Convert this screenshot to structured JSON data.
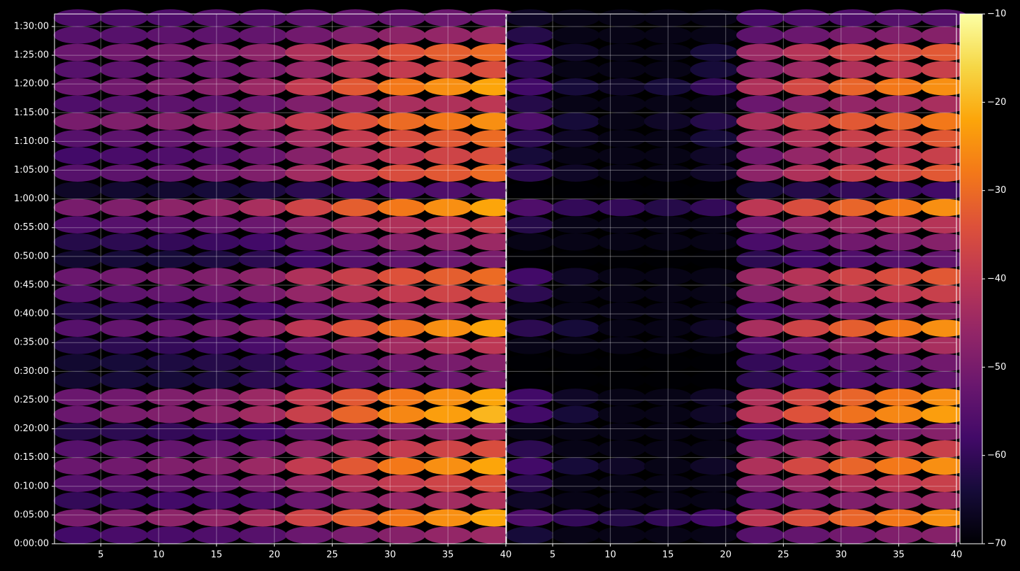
{
  "chart_data": [
    {
      "type": "heatmap",
      "grid": true,
      "x": [
        3,
        7,
        11,
        15,
        19,
        23,
        27,
        31,
        35,
        39
      ],
      "y": [
        90,
        270,
        450,
        630,
        810,
        990,
        1170,
        1350,
        1530,
        1710,
        1890,
        2070,
        2250,
        2430,
        2610,
        2790,
        2970,
        3150,
        3330,
        3510,
        3690,
        3870,
        4050,
        4230,
        4410,
        4590,
        4770,
        4950,
        5130,
        5310,
        5490
      ],
      "xlim": [
        1,
        40
      ],
      "ylim": [
        0,
        5531
      ],
      "xticks": [
        5,
        10,
        15,
        20,
        25,
        30,
        35,
        40
      ],
      "yticks": [
        {
          "value": 0,
          "label": "0:00:00"
        },
        {
          "value": 300,
          "label": "0:05:00"
        },
        {
          "value": 600,
          "label": "0:10:00"
        },
        {
          "value": 900,
          "label": "0:15:00"
        },
        {
          "value": 1200,
          "label": "0:20:00"
        },
        {
          "value": 1500,
          "label": "0:25:00"
        },
        {
          "value": 1800,
          "label": "0:30:00"
        },
        {
          "value": 2100,
          "label": "0:35:00"
        },
        {
          "value": 2400,
          "label": "0:40:00"
        },
        {
          "value": 2700,
          "label": "0:45:00"
        },
        {
          "value": 3000,
          "label": "0:50:00"
        },
        {
          "value": 3300,
          "label": "0:55:00"
        },
        {
          "value": 3600,
          "label": "1:00:00"
        },
        {
          "value": 3900,
          "label": "1:05:00"
        },
        {
          "value": 4200,
          "label": "1:10:00"
        },
        {
          "value": 4500,
          "label": "1:15:00"
        },
        {
          "value": 4800,
          "label": "1:20:00"
        },
        {
          "value": 5100,
          "label": "1:25:00"
        },
        {
          "value": 5400,
          "label": "1:30:00"
        }
      ],
      "z": [
        [
          -58,
          -57,
          -57,
          -56,
          -55,
          -52,
          -50,
          -48,
          -46,
          -45
        ],
        [
          -50,
          -49,
          -47,
          -46,
          -43,
          -37,
          -32,
          -28,
          -25,
          -22
        ],
        [
          -60,
          -59,
          -58,
          -57,
          -56,
          -52,
          -48,
          -46,
          -44,
          -42
        ],
        [
          -55,
          -54,
          -53,
          -52,
          -50,
          -46,
          -42,
          -39,
          -37,
          -35
        ],
        [
          -52,
          -51,
          -49,
          -48,
          -45,
          -39,
          -33,
          -28,
          -25,
          -22
        ],
        [
          -55,
          -54,
          -53,
          -52,
          -50,
          -46,
          -42,
          -39,
          -37,
          -35
        ],
        [
          -62,
          -61,
          -60,
          -59,
          -58,
          -54,
          -51,
          -48,
          -47,
          -45
        ],
        [
          -52,
          -50,
          -49,
          -47,
          -44,
          -38,
          -31,
          -26,
          -23,
          -20
        ],
        [
          -52,
          -51,
          -49,
          -48,
          -45,
          -39,
          -33,
          -28,
          -25,
          -22
        ],
        [
          -65,
          -64,
          -64,
          -63,
          -61,
          -58,
          -55,
          -53,
          -52,
          -50
        ],
        [
          -65,
          -64,
          -63,
          -62,
          -61,
          -57,
          -54,
          -51,
          -50,
          -48
        ],
        [
          -62,
          -61,
          -60,
          -59,
          -57,
          -52,
          -48,
          -44,
          -42,
          -40
        ],
        [
          -55,
          -53,
          -52,
          -50,
          -47,
          -40,
          -34,
          -29,
          -25,
          -22
        ],
        [
          -62,
          -61,
          -60,
          -59,
          -58,
          -54,
          -51,
          -48,
          -47,
          -45
        ],
        [
          -55,
          -54,
          -53,
          -52,
          -50,
          -46,
          -42,
          -39,
          -37,
          -35
        ],
        [
          -52,
          -51,
          -50,
          -49,
          -47,
          -42,
          -38,
          -34,
          -32,
          -30
        ],
        [
          -65,
          -64,
          -64,
          -63,
          -61,
          -58,
          -55,
          -53,
          -52,
          -50
        ],
        [
          -62,
          -61,
          -60,
          -59,
          -58,
          -54,
          -51,
          -48,
          -47,
          -45
        ],
        [
          -56,
          -55,
          -54,
          -53,
          -52,
          -48,
          -44,
          -42,
          -40,
          -38
        ],
        [
          -50,
          -49,
          -47,
          -46,
          -43,
          -37,
          -32,
          -28,
          -25,
          -22
        ],
        [
          -66,
          -65,
          -65,
          -64,
          -63,
          -61,
          -59,
          -57,
          -56,
          -55
        ],
        [
          -55,
          -54,
          -53,
          -51,
          -49,
          -44,
          -39,
          -35,
          -33,
          -30
        ],
        [
          -58,
          -57,
          -56,
          -55,
          -52,
          -48,
          -43,
          -40,
          -37,
          -35
        ],
        [
          -55,
          -54,
          -53,
          -51,
          -49,
          -44,
          -39,
          -35,
          -33,
          -30
        ],
        [
          -50,
          -49,
          -48,
          -46,
          -44,
          -39,
          -34,
          -30,
          -28,
          -25
        ],
        [
          -56,
          -55,
          -54,
          -54,
          -52,
          -49,
          -46,
          -43,
          -42,
          -40
        ],
        [
          -52,
          -51,
          -49,
          -48,
          -45,
          -39,
          -33,
          -28,
          -25,
          -22
        ],
        [
          -55,
          -54,
          -53,
          -52,
          -50,
          -46,
          -42,
          -39,
          -37,
          -35
        ],
        [
          -52,
          -51,
          -50,
          -49,
          -47,
          -42,
          -38,
          -34,
          -32,
          -30
        ],
        [
          -55,
          -55,
          -54,
          -54,
          -53,
          -51,
          -49,
          -47,
          -46,
          -45
        ],
        [
          -56,
          -56,
          -56,
          -55,
          -55,
          -54,
          -53,
          -53,
          -52,
          -52
        ]
      ]
    },
    {
      "type": "heatmap",
      "grid": true,
      "x": [
        3,
        7,
        11,
        15,
        19,
        23,
        27,
        31,
        35,
        39
      ],
      "y": [
        90,
        270,
        450,
        630,
        810,
        990,
        1170,
        1350,
        1530,
        1710,
        1890,
        2070,
        2250,
        2430,
        2610,
        2790,
        2970,
        3150,
        3330,
        3510,
        3690,
        3870,
        4050,
        4230,
        4410,
        4590,
        4770,
        4950,
        5130,
        5310,
        5490
      ],
      "xlim": [
        1,
        40
      ],
      "ylim": [
        0,
        5531
      ],
      "xticks": [
        5,
        10,
        15,
        20,
        25,
        30,
        35,
        40
      ],
      "z": [
        [
          -64,
          -68,
          -68,
          -68,
          -68,
          -55,
          -53,
          -51,
          -49,
          -48
        ],
        [
          -56,
          -60,
          -62,
          -60,
          -58,
          -40,
          -35,
          -31,
          -28,
          -25
        ],
        [
          -66,
          -68,
          -68,
          -68,
          -68,
          -55,
          -51,
          -49,
          -47,
          -45
        ],
        [
          -61,
          -68,
          -68,
          -68,
          -68,
          -49,
          -45,
          -42,
          -40,
          -38
        ],
        [
          -58,
          -64,
          -66,
          -68,
          -66,
          -42,
          -36,
          -31,
          -28,
          -25
        ],
        [
          -61,
          -68,
          -68,
          -68,
          -68,
          -49,
          -45,
          -42,
          -40,
          -38
        ],
        [
          -68,
          -68,
          -68,
          -68,
          -68,
          -57,
          -54,
          -51,
          -50,
          -48
        ],
        [
          -58,
          -64,
          -68,
          -68,
          -66,
          -41,
          -34,
          -29,
          -26,
          -23
        ],
        [
          -58,
          -66,
          -68,
          -68,
          -66,
          -42,
          -36,
          -31,
          -28,
          -25
        ],
        [
          -70,
          -70,
          -70,
          -70,
          -70,
          -61,
          -58,
          -56,
          -55,
          -53
        ],
        [
          -70,
          -70,
          -70,
          -70,
          -70,
          -60,
          -57,
          -54,
          -53,
          -51
        ],
        [
          -68,
          -68,
          -68,
          -68,
          -68,
          -55,
          -51,
          -47,
          -45,
          -43
        ],
        [
          -61,
          -64,
          -68,
          -68,
          -66,
          -43,
          -37,
          -32,
          -28,
          -25
        ],
        [
          -68,
          -68,
          -68,
          -68,
          -68,
          -57,
          -54,
          -51,
          -50,
          -48
        ],
        [
          -61,
          -68,
          -68,
          -68,
          -68,
          -49,
          -45,
          -42,
          -40,
          -38
        ],
        [
          -58,
          -66,
          -68,
          -68,
          -68,
          -45,
          -41,
          -37,
          -35,
          -33
        ],
        [
          -70,
          -70,
          -70,
          -70,
          -70,
          -61,
          -58,
          -56,
          -55,
          -53
        ],
        [
          -68,
          -68,
          -68,
          -68,
          -68,
          -57,
          -54,
          -51,
          -50,
          -48
        ],
        [
          -62,
          -68,
          -68,
          -68,
          -68,
          -51,
          -47,
          -45,
          -43,
          -41
        ],
        [
          -56,
          -60,
          -60,
          -62,
          -60,
          -40,
          -35,
          -31,
          -28,
          -25
        ],
        [
          -70,
          -70,
          -70,
          -70,
          -70,
          -64,
          -62,
          -60,
          -59,
          -58
        ],
        [
          -61,
          -66,
          -68,
          -68,
          -66,
          -47,
          -42,
          -38,
          -36,
          -33
        ],
        [
          -64,
          -68,
          -68,
          -68,
          -66,
          -51,
          -46,
          -43,
          -40,
          -38
        ],
        [
          -61,
          -66,
          -68,
          -68,
          -64,
          -47,
          -42,
          -38,
          -36,
          -33
        ],
        [
          -56,
          -64,
          -68,
          -66,
          -62,
          -42,
          -37,
          -33,
          -31,
          -28
        ],
        [
          -62,
          -68,
          -68,
          -68,
          -68,
          -52,
          -49,
          -46,
          -45,
          -43
        ],
        [
          -58,
          -64,
          -66,
          -64,
          -60,
          -42,
          -36,
          -31,
          -28,
          -25
        ],
        [
          -61,
          -68,
          -68,
          -68,
          -64,
          -49,
          -45,
          -42,
          -40,
          -38
        ],
        [
          -58,
          -66,
          -68,
          -68,
          -64,
          -45,
          -41,
          -37,
          -35,
          -33
        ],
        [
          -62,
          -68,
          -68,
          -68,
          -68,
          -54,
          -52,
          -50,
          -49,
          -48
        ],
        [
          -66,
          -68,
          -68,
          -68,
          -68,
          -57,
          -56,
          -56,
          -55,
          -55
        ]
      ]
    },
    {
      "type": "colorbar",
      "clim": [
        -70,
        -10
      ],
      "ticks": [
        {
          "value": -70,
          "label": "−70"
        },
        {
          "value": -60,
          "label": "−60"
        },
        {
          "value": -50,
          "label": "−50"
        },
        {
          "value": -40,
          "label": "−40"
        },
        {
          "value": -30,
          "label": "−30"
        },
        {
          "value": -20,
          "label": "−20"
        },
        {
          "value": -10,
          "label": "−10"
        }
      ],
      "colors": [
        "#000004",
        "#160b39",
        "#420a68",
        "#6a176e",
        "#932667",
        "#bc3754",
        "#dd513a",
        "#f37819",
        "#fca50a",
        "#f6d746",
        "#fcffa4"
      ]
    }
  ]
}
